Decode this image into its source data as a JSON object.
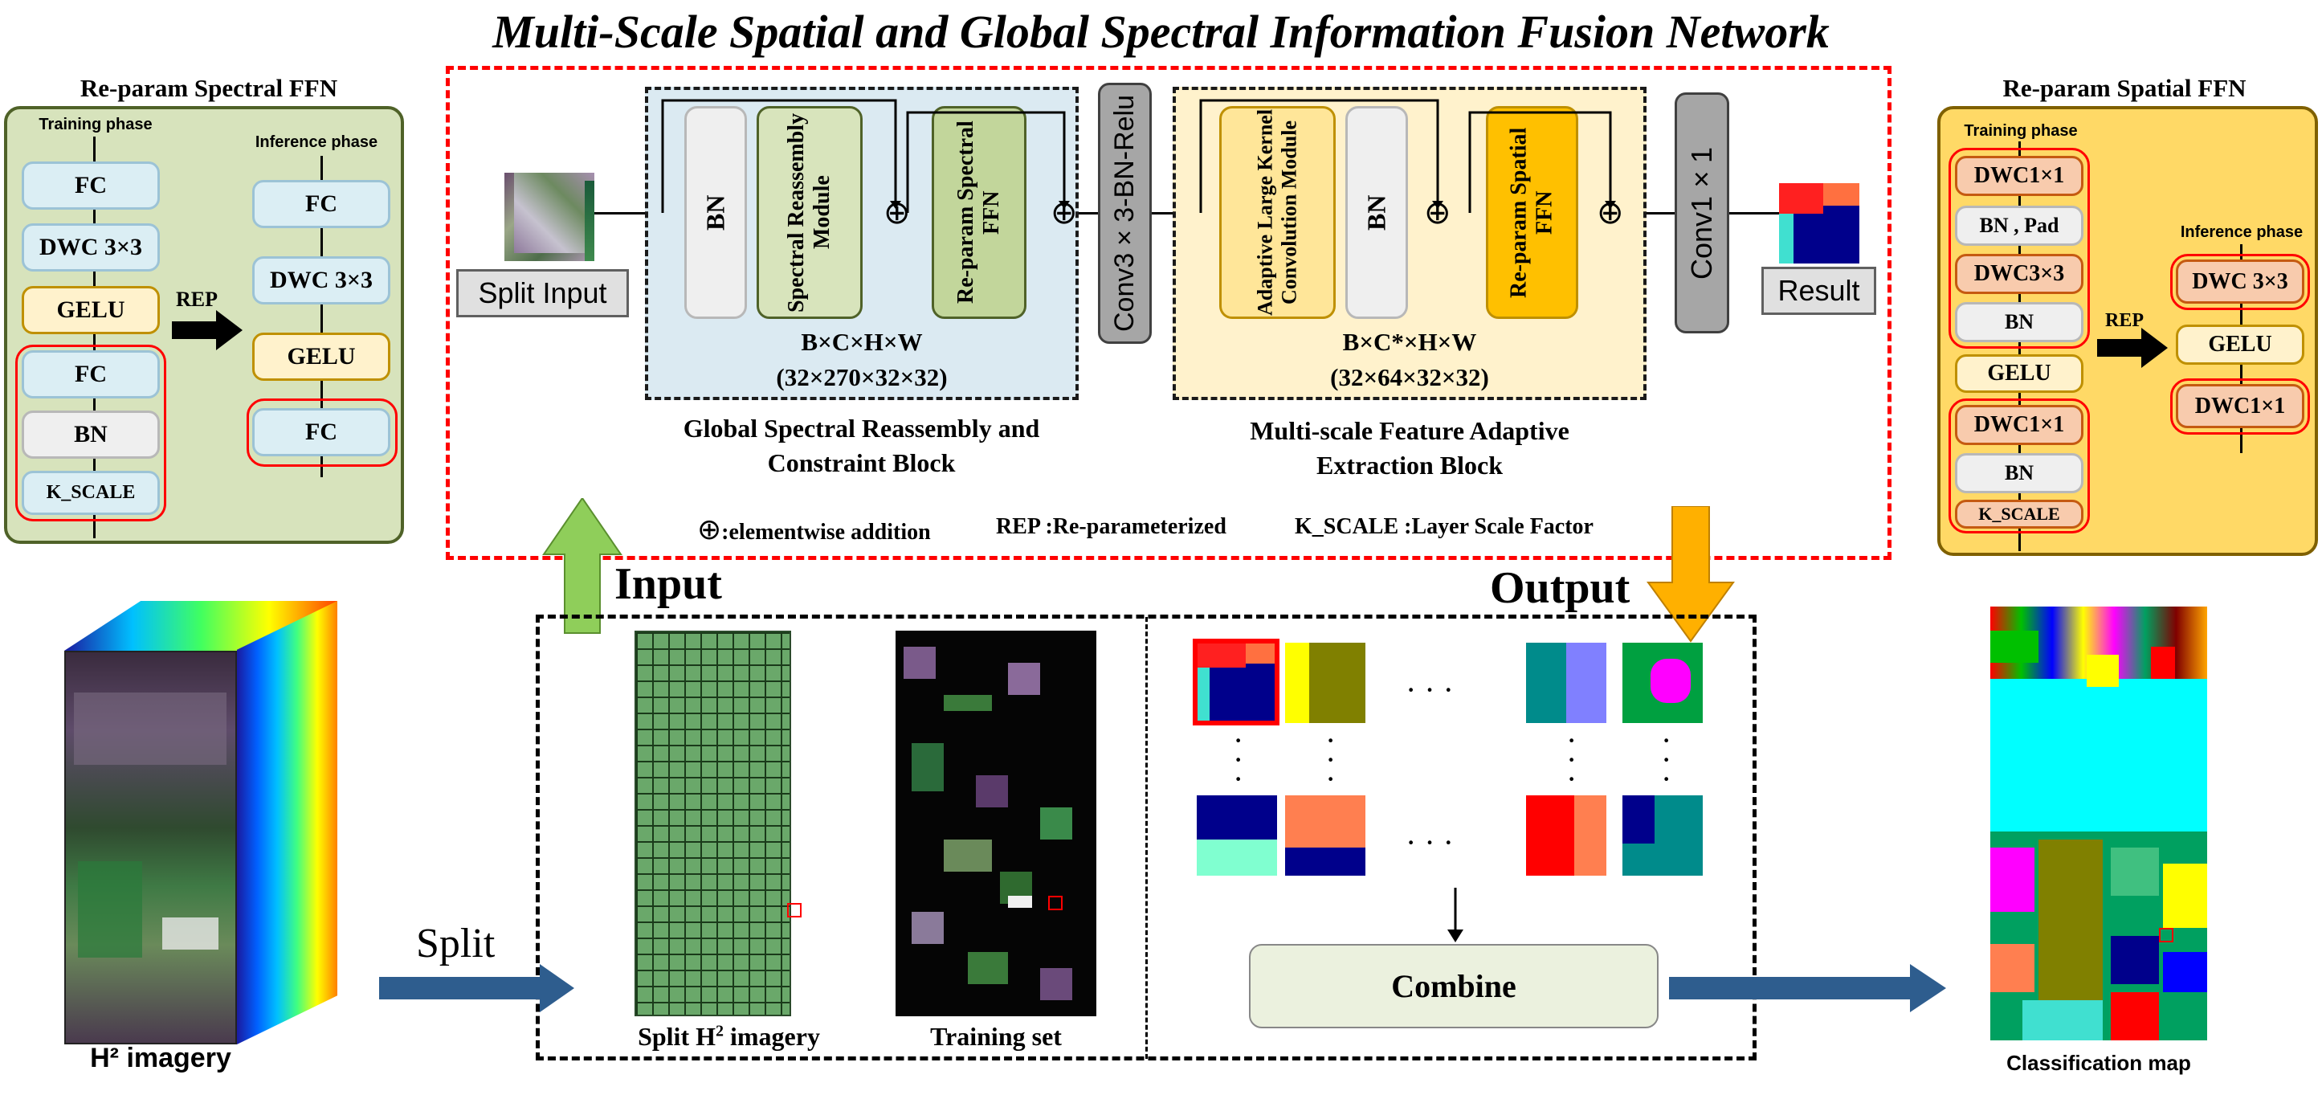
{
  "title": "Multi-Scale Spatial and Global Spectral Information Fusion Network",
  "left_panel": {
    "title": "Re-param Spectral FFN",
    "training_label": "Training phase",
    "inference_label": "Inference phase",
    "training_blocks": [
      "FC",
      "DWC 3×3",
      "GELU",
      "FC",
      "BN",
      "K_SCALE"
    ],
    "inference_blocks": [
      "FC",
      "DWC 3×3",
      "GELU",
      "FC"
    ],
    "rep_label": "REP"
  },
  "right_panel": {
    "title": "Re-param Spatial FFN",
    "training_label": "Training phase",
    "inference_label": "Inference phase",
    "training_blocks": [
      "DWC1×1",
      "BN , Pad",
      "DWC3×3",
      "BN",
      "GELU",
      "DWC1×1",
      "BN",
      "K_SCALE"
    ],
    "inference_blocks": [
      "DWC 3×3",
      "GELU",
      "DWC1×1"
    ],
    "rep_label": "REP"
  },
  "network": {
    "split_input": "Split Input",
    "bn": "BN",
    "spectral_reassembly": "Spectral Reassembly Module",
    "reparam_spectral": "Re-param Spectral FFN",
    "block1_shape": "B×C×H×W",
    "block1_dims": "(32×270×32×32)",
    "block1_caption_1": "Global Spectral Reassembly and",
    "block1_caption_2": "Constraint Block",
    "conv3": "Conv3×3-BN-Relu",
    "adaptive": "Adaptive Large Kernel Convolution Module",
    "bn2": "BN",
    "reparam_spatial": "Re-param Spatial FFN",
    "block2_shape": "B×C*×H×W",
    "block2_dims": "(32×64×32×32)",
    "block2_caption_1": "Multi-scale Feature Adaptive",
    "block2_caption_2": "Extraction Block",
    "conv1": "Conv1×1",
    "result": "Result",
    "legend_add": ":elementwise addition",
    "legend_rep": "REP :Re-parameterized",
    "legend_kscale": "K_SCALE :Layer Scale Factor"
  },
  "bottom": {
    "input_label": "Input",
    "output_label": "Output",
    "split_label": "Split",
    "h2_label": "H² imagery",
    "split_h2_label_pre": "Split H",
    "split_h2_sup": "2",
    "split_h2_label_post": " imagery",
    "training_set_label": "Training set",
    "combine_label": "Combine",
    "classification_label": "Classification map",
    "dots": "· · ·"
  },
  "colors": {
    "red_dash": "#ff0000",
    "blue_arrow": "#2e5d8e",
    "green_arrow": "#8fce5a",
    "orange_arrow": "#ffb000",
    "spectral_panel": "#d7e3bc",
    "spatial_panel": "#ffd966"
  }
}
